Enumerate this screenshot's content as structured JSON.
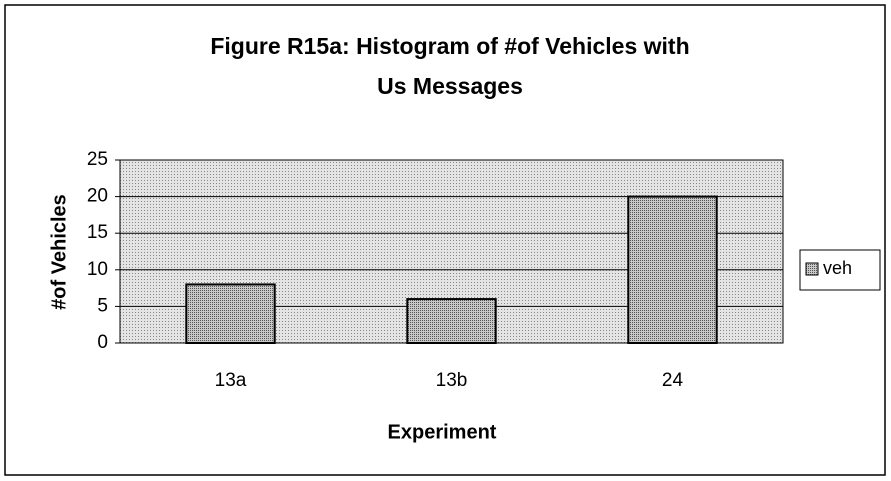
{
  "chart_data": {
    "type": "bar",
    "title": "Figure R15a: Histogram of #of Vehicles with Us Messages",
    "title_lines": [
      "Figure R15a: Histogram of #of Vehicles with",
      "Us Messages"
    ],
    "x_label": "Experiment",
    "y_label": "#of Vehicles",
    "categories": [
      "13a",
      "13b",
      "24"
    ],
    "series": [
      {
        "name": "veh",
        "color": "#a8a8a8",
        "values": [
          8,
          6,
          20
        ]
      }
    ],
    "ylim": [
      0,
      25
    ],
    "yticks": [
      0,
      5,
      10,
      15,
      20,
      25
    ],
    "grid": true,
    "legend": "right"
  }
}
